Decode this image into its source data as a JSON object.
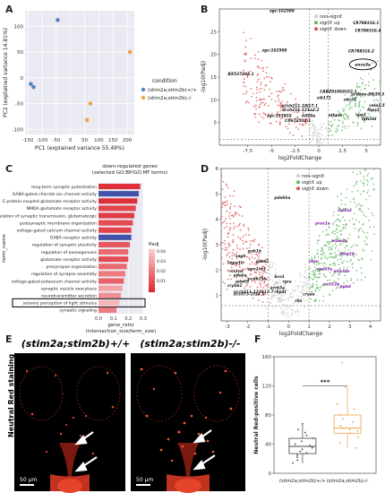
{
  "panels": {
    "a": "A",
    "b": "B",
    "c": "C",
    "d": "D",
    "e": "E",
    "f": "F"
  },
  "chart_data": [
    {
      "id": "A",
      "type": "scatter",
      "xlabel": "PC1 (explained variance 55.49%)",
      "ylabel": "PC2 (explained variance 14.81%)",
      "xlim": [
        -160,
        225
      ],
      "ylim": [
        -110,
        130
      ],
      "xticks": [
        -150,
        -100,
        -50,
        0,
        50,
        100,
        150,
        200
      ],
      "yticks": [
        -100,
        -50,
        0,
        50,
        100
      ],
      "legend_title": "condition",
      "series": [
        {
          "name": "(stim2a;stim2b)+/+",
          "color": "#5b7fc4",
          "x": [
            -45,
            -140,
            -130
          ],
          "y": [
            112,
            -12,
            -18
          ]
        },
        {
          "name": "(stim2a;stim2b)-/-",
          "color": "#f0a14a",
          "x": [
            210,
            70,
            58
          ],
          "y": [
            50,
            -50,
            -82
          ]
        }
      ]
    },
    {
      "id": "B",
      "type": "scatter",
      "xlabel": "log2FoldChange",
      "ylabel": "-log10(Padj)",
      "xlim": [
        -10.5,
        6.5
      ],
      "ylim": [
        0,
        30
      ],
      "xticks": [
        -7.5,
        -5.0,
        -2.5,
        0.0,
        2.5,
        5.0
      ],
      "yticks": [
        5,
        10,
        15,
        20,
        25
      ],
      "legend": [
        "non-signif.",
        "signif. up",
        "signif. down"
      ],
      "legend_colors": [
        "#cccccc",
        "#62b862",
        "#d9534f"
      ],
      "labels": [
        {
          "text": "zgc:162509",
          "x": -5.2,
          "y": 29.3
        },
        {
          "text": "CR788316.1",
          "x": 3.6,
          "y": 26.6
        },
        {
          "text": "CR788316.4",
          "x": 3.8,
          "y": 25.0
        },
        {
          "text": "zgc:162509",
          "x": -6.0,
          "y": 20.6
        },
        {
          "text": "CR788316.2",
          "x": 3.1,
          "y": 20.4
        },
        {
          "text": "BX537263.1",
          "x": -9.6,
          "y": 15.4
        },
        {
          "text": "anxa3a",
          "x": 3.8,
          "y": 17.5
        },
        {
          "text": "CABZ01069162.1",
          "x": 0.1,
          "y": 11.5
        },
        {
          "text": "si:dkey-88j15.3",
          "x": 3.4,
          "y": 11.0
        },
        {
          "text": "sik171",
          "x": -0.2,
          "y": 10.2
        },
        {
          "text": "cdc26",
          "x": 2.6,
          "y": 9.8
        },
        {
          "text": "si:ch211-18l17.1",
          "x": -3.9,
          "y": 8.4
        },
        {
          "text": "si:ch211-121a2.2",
          "x": -3.9,
          "y": 7.5
        },
        {
          "text": "zgc:153932",
          "x": -5.5,
          "y": 6.2
        },
        {
          "text": "CU672512.1",
          "x": -3.6,
          "y": 5.1
        },
        {
          "text": "kif20a",
          "x": -1.8,
          "y": 6.2
        },
        {
          "text": "ethela",
          "x": 1.0,
          "y": 6.3
        },
        {
          "text": "cela1.5",
          "x": 5.3,
          "y": 8.5
        },
        {
          "text": "fbps1",
          "x": 5.1,
          "y": 7.5
        },
        {
          "text": "spp1",
          "x": 3.9,
          "y": 6.4
        },
        {
          "text": "fgfr1bl",
          "x": 4.5,
          "y": 5.5
        }
      ],
      "circled": "anxa3a"
    },
    {
      "id": "C",
      "type": "bar",
      "title": "down-regulated genes",
      "subtitle": "(selected GO:BP/GO:MF terms)",
      "xlabel": "gene_ratio",
      "xlabel2": "(intersection_size/term_size)",
      "ylabel": "term_name",
      "xlim": [
        0,
        0.3
      ],
      "xticks": [
        "0.0",
        "0.1",
        "0.2",
        "0.3"
      ],
      "legend_title": "Padj",
      "legend_ticks": [
        "0.01",
        "0.02",
        "0.03",
        "0.04"
      ],
      "categories": [
        "long-term synaptic potentiation",
        "GABA-gated chloride ion channel activity",
        "G protein-coupled glutamate receptor activity",
        "NMDA glutamate receptor activity",
        "regulation of synaptic transmission, glutamatergic",
        "postsynaptic membrane organization",
        "voltage-gated calcium channel activity",
        "GABA receptor activity",
        "regulation of synaptic plasticity",
        "regulation of axonogenesis",
        "glutamate receptor activity",
        "presynapse organization",
        "regulation of synapse assembly",
        "voltage-gated potassium channel activity",
        "synaptic vesicle exocytosis",
        "neurotransmitter secretion",
        "sensory perception of light stimulus",
        "synaptic signaling"
      ],
      "values": [
        0.28,
        0.27,
        0.26,
        0.25,
        0.24,
        0.23,
        0.22,
        0.22,
        0.21,
        0.2,
        0.2,
        0.19,
        0.18,
        0.17,
        0.16,
        0.15,
        0.14,
        0.12
      ],
      "padj": [
        0.005,
        0.001,
        0.005,
        0.01,
        0.008,
        0.012,
        0.01,
        0.001,
        0.015,
        0.02,
        0.012,
        0.02,
        0.025,
        0.018,
        0.035,
        0.03,
        0.04,
        0.025
      ],
      "highlighted": "sensory perception of light stimulus"
    },
    {
      "id": "D",
      "type": "scatter",
      "xlabel": "log2FoldChange",
      "ylabel": "-log10(Padj)",
      "xlim": [
        -3.3,
        4.5
      ],
      "ylim": [
        0,
        6
      ],
      "xticks": [
        -3,
        -2,
        -1,
        0,
        1,
        2,
        3,
        4
      ],
      "yticks": [
        1,
        2,
        3,
        4,
        5,
        6
      ],
      "legend": [
        "non-signif.",
        "signif. up",
        "signif. down"
      ],
      "legend_colors": [
        "#cccccc",
        "#62b862",
        "#d9534f"
      ],
      "labels": [
        {
          "text": "pde6ha",
          "x": -0.7,
          "y": 4.8,
          "color": "#222"
        },
        {
          "text": "gnb1b",
          "x": -2.0,
          "y": 2.7,
          "color": "#222"
        },
        {
          "text": "sagb",
          "x": -2.6,
          "y": 2.5,
          "color": "#222"
        },
        {
          "text": "impg1b",
          "x": -3.0,
          "y": 2.25,
          "color": "#222"
        },
        {
          "text": "pde6c",
          "x": -1.6,
          "y": 2.3,
          "color": "#222"
        },
        {
          "text": "rcvrn3",
          "x": -2.9,
          "y": 1.9,
          "color": "#222"
        },
        {
          "text": "opn1lw1",
          "x": -2.0,
          "y": 2.0,
          "color": "#222"
        },
        {
          "text": "pde6a",
          "x": -2.7,
          "y": 1.75,
          "color": "#222"
        },
        {
          "text": "pcdh15b",
          "x": -2.0,
          "y": 1.6,
          "color": "#222"
        },
        {
          "text": "crybb1",
          "x": -3.0,
          "y": 1.35,
          "color": "#222"
        },
        {
          "text": "pde6b",
          "x": -2.6,
          "y": 1.5,
          "color": "#222"
        },
        {
          "text": "bco1",
          "x": -0.7,
          "y": 1.7,
          "color": "#222"
        },
        {
          "text": "rgra",
          "x": -0.3,
          "y": 1.5,
          "color": "#222"
        },
        {
          "text": "si:ch211-132b12.7",
          "x": -2.7,
          "y": 1.1,
          "color": "#222"
        },
        {
          "text": "si:ch73-1f14.1",
          "x": -2.7,
          "y": 1.0,
          "color": "#222"
        },
        {
          "text": "arrb3a",
          "x": -0.9,
          "y": 1.25,
          "color": "#222"
        },
        {
          "text": "rbp4l",
          "x": -0.7,
          "y": 1.1,
          "color": "#222"
        },
        {
          "text": "cryaa",
          "x": 0.7,
          "y": 1.0,
          "color": "#222"
        },
        {
          "text": "rho",
          "x": 0.3,
          "y": 0.75,
          "color": "#222"
        },
        {
          "text": "rbsn",
          "x": 1.0,
          "y": 2.3,
          "color": "#7b1fa2"
        },
        {
          "text": "rpe65a",
          "x": 1.4,
          "y": 2.0,
          "color": "#7b1fa2"
        },
        {
          "text": "anxa3a",
          "x": 2.1,
          "y": 3.1,
          "color": "#7b1fa2"
        },
        {
          "text": "elovl4b",
          "x": 2.2,
          "y": 1.9,
          "color": "#7b1fa2"
        },
        {
          "text": "prox1a",
          "x": 1.3,
          "y": 3.8,
          "color": "#7b1fa2"
        },
        {
          "text": "col5a2",
          "x": 2.4,
          "y": 4.3,
          "color": "#7b1fa2"
        },
        {
          "text": "foxg1b",
          "x": 2.5,
          "y": 2.6,
          "color": "#7b1fa2"
        },
        {
          "text": "cxcl12a",
          "x": 1.7,
          "y": 1.4,
          "color": "#7b1fa2"
        },
        {
          "text": "pgbd",
          "x": 2.5,
          "y": 1.3,
          "color": "#7b1fa2"
        }
      ]
    },
    {
      "id": "F",
      "type": "box",
      "ylabel": "Neutral Red-positive cells",
      "ylim": [
        0,
        160
      ],
      "yticks": [
        0,
        40,
        80,
        120,
        160
      ],
      "significance": "***",
      "categories": [
        "(stim2a;stim2b)+/+",
        "(stim2a;stim2b)-/-"
      ],
      "colors": [
        "#444444",
        "#f0a14a"
      ],
      "boxes": [
        {
          "min": 14,
          "q1": 27,
          "median": 37,
          "q3": 48,
          "max": 68,
          "points": [
            14,
            18,
            22,
            25,
            28,
            30,
            33,
            35,
            38,
            40,
            44,
            48,
            52,
            56,
            60,
            68
          ]
        },
        {
          "min": 35,
          "q1": 55,
          "median": 62,
          "q3": 80,
          "max": 118,
          "points": [
            35,
            42,
            50,
            55,
            58,
            60,
            62,
            65,
            70,
            75,
            80,
            88,
            95,
            118,
            152
          ]
        }
      ]
    }
  ],
  "panelE": {
    "titles": [
      "(stim2a;stim2b)+/+",
      "(stim2a;stim2b)-/-"
    ],
    "side_label": "Neutral Red staining",
    "scale": "50 µm"
  }
}
